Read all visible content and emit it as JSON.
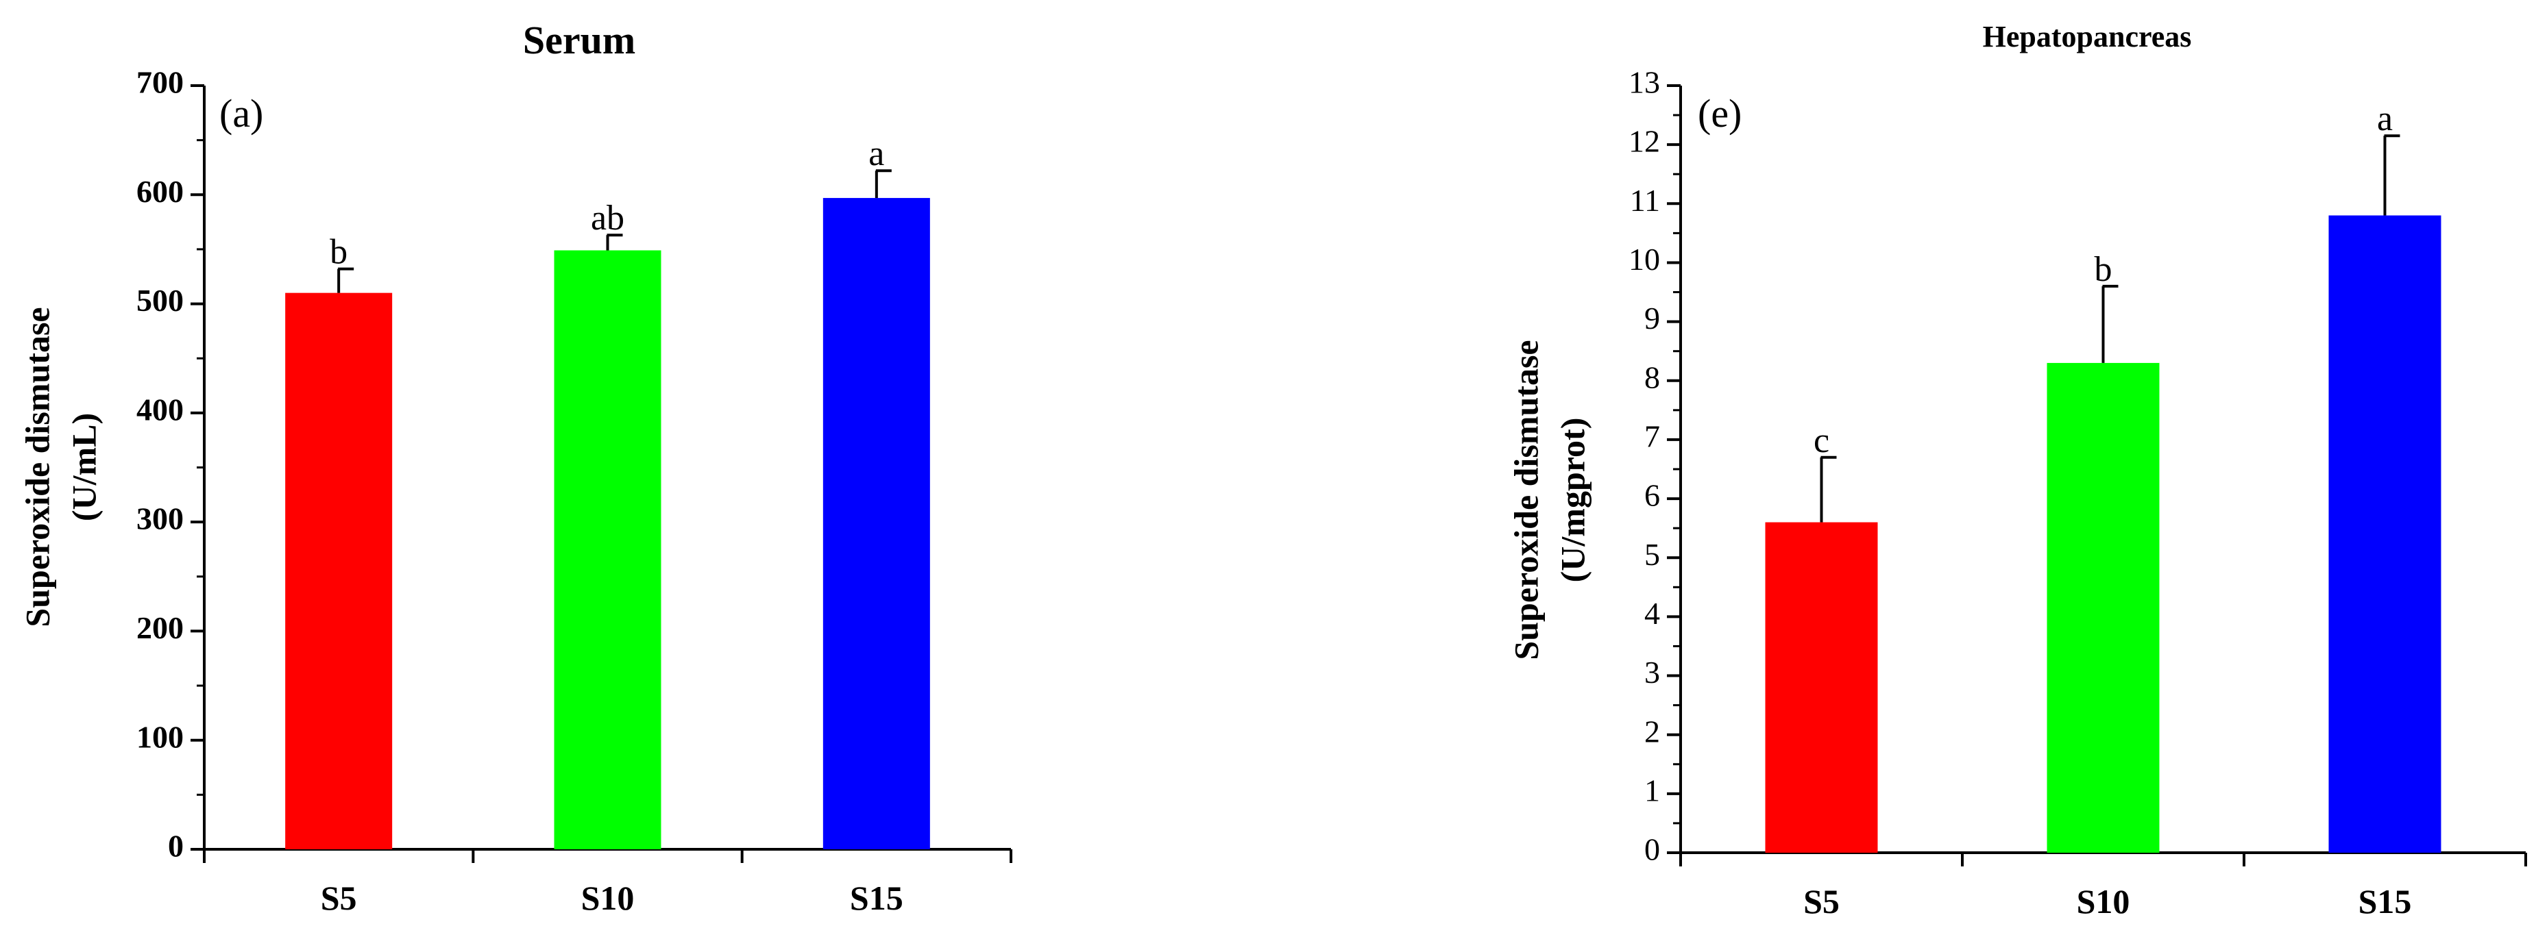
{
  "chart_data": [
    {
      "type": "bar",
      "title": "Serum",
      "panel_label": "(a)",
      "ylabel": [
        "Superoxide dismutase",
        "(U/mL)"
      ],
      "categories": [
        "S5",
        "S10",
        "S15"
      ],
      "values": [
        510,
        549,
        597
      ],
      "errors": [
        22,
        14,
        25
      ],
      "significance": [
        "b",
        "ab",
        "a"
      ],
      "colors": [
        "#ff0000",
        "#00ff00",
        "#0000ff"
      ],
      "ylim": [
        0,
        700
      ],
      "yticks": [
        "0",
        "100",
        "200",
        "300",
        "400",
        "500",
        "600",
        "700"
      ],
      "grid": false
    },
    {
      "type": "bar",
      "title": "Hepatopancreas",
      "panel_label": "(e)",
      "ylabel": [
        "Superoxide dismutase",
        "(U/mgprot)"
      ],
      "categories": [
        "S5",
        "S10",
        "S15"
      ],
      "values": [
        5.6,
        8.3,
        10.8
      ],
      "errors": [
        1.1,
        1.3,
        1.35
      ],
      "significance": [
        "c",
        "b",
        "a"
      ],
      "colors": [
        "#ff0000",
        "#00ff00",
        "#0000ff"
      ],
      "ylim": [
        0,
        13
      ],
      "yticks": [
        "0",
        "1",
        "2",
        "3",
        "4",
        "5",
        "6",
        "7",
        "8",
        "9",
        "10",
        "11",
        "12",
        "13"
      ],
      "grid": false
    }
  ]
}
